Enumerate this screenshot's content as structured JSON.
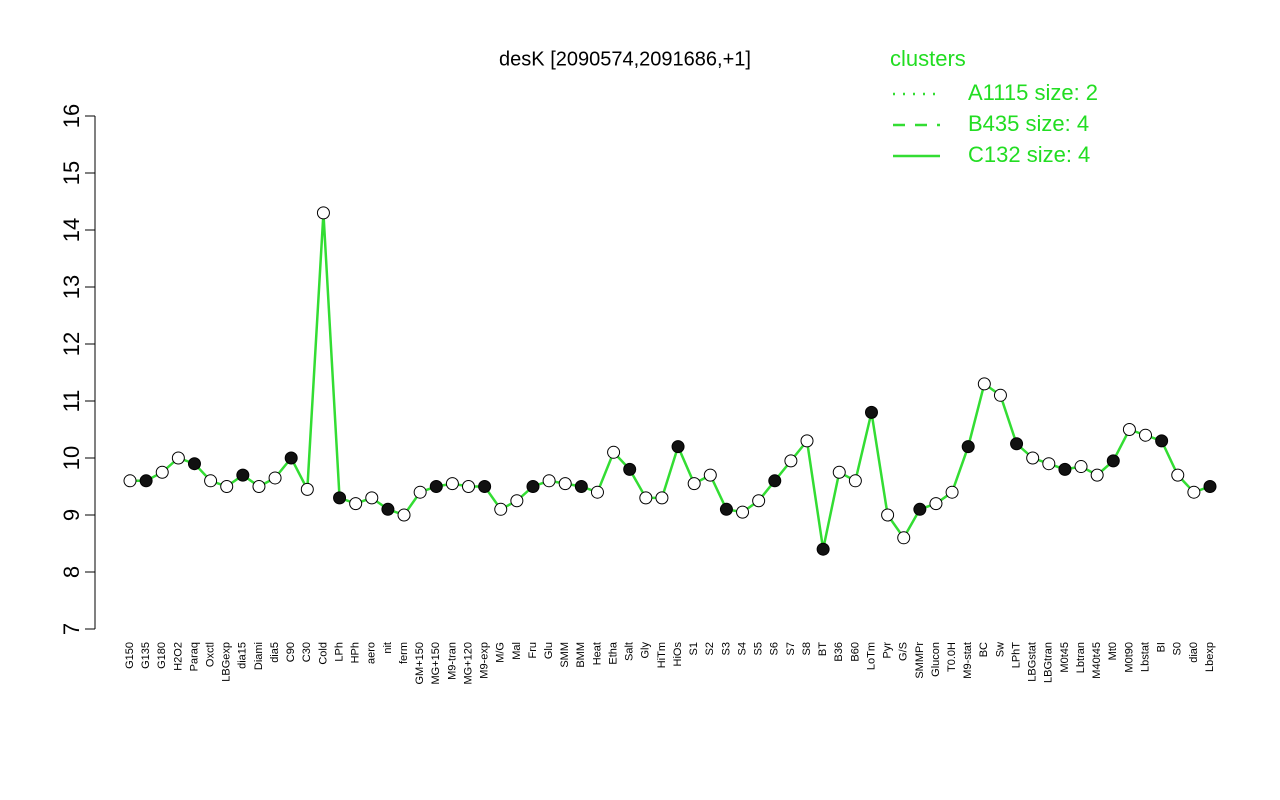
{
  "chart_data": {
    "type": "line",
    "title": "desK [2090574,2091686,+1]",
    "categories": [
      "G150",
      "G135",
      "G180",
      "H2O2",
      "Paraq",
      "Oxctl",
      "LBGexp",
      "dia15",
      "Diami",
      "dia5",
      "C90",
      "C30",
      "Cold",
      "LPh",
      "HPh",
      "aero",
      "nit",
      "ferm",
      "GM+150",
      "MG+150",
      "M9-tran",
      "MG+120",
      "M9-exp",
      "M/G",
      "Mal",
      "Fru",
      "Glu",
      "SMM",
      "BMM",
      "Heat",
      "Etha",
      "Salt",
      "Gly",
      "HiTm",
      "HiOs",
      "S1",
      "S2",
      "S3",
      "S4",
      "S5",
      "S6",
      "S7",
      "S8",
      "BT",
      "B36",
      "B60",
      "LoTm",
      "Pyr",
      "G/S",
      "SMMPr",
      "Glucon",
      "T0.0H",
      "M9-stat",
      "BC",
      "Sw",
      "LPhT",
      "LBGstat",
      "LBGtran",
      "M0t45",
      "Lbtran",
      "M40t45",
      "Mt0",
      "M0t90",
      "Lbstat",
      "BI",
      "S0",
      "dia0",
      "Lbexp"
    ],
    "values": [
      9.6,
      9.6,
      9.75,
      10.0,
      9.9,
      9.6,
      9.5,
      9.7,
      9.5,
      9.65,
      10.0,
      9.45,
      14.3,
      9.3,
      9.2,
      9.3,
      9.1,
      9.0,
      9.4,
      9.5,
      9.55,
      9.5,
      9.5,
      9.1,
      9.25,
      9.5,
      9.6,
      9.55,
      9.5,
      9.4,
      10.1,
      9.8,
      9.3,
      9.3,
      10.2,
      9.55,
      9.7,
      9.1,
      9.05,
      9.25,
      9.6,
      9.95,
      10.3,
      8.4,
      9.75,
      9.6,
      10.8,
      9.0,
      8.6,
      9.1,
      9.2,
      9.4,
      10.2,
      11.3,
      11.1,
      10.25,
      10.0,
      9.9,
      9.8,
      9.85,
      9.7,
      9.95,
      10.5,
      10.4,
      10.3,
      9.7,
      9.4,
      9.5
    ],
    "color": "#33dd33",
    "ylim": [
      7,
      16
    ],
    "yticks": [
      7,
      8,
      9,
      10,
      11,
      12,
      13,
      14,
      15,
      16
    ],
    "legend": {
      "title": "clusters",
      "entries": [
        {
          "name": "A1115 size: 2",
          "style": "dotted"
        },
        {
          "name": "B435 size: 4",
          "style": "dashed"
        },
        {
          "name": "C132 size: 4",
          "style": "solid"
        }
      ]
    }
  }
}
